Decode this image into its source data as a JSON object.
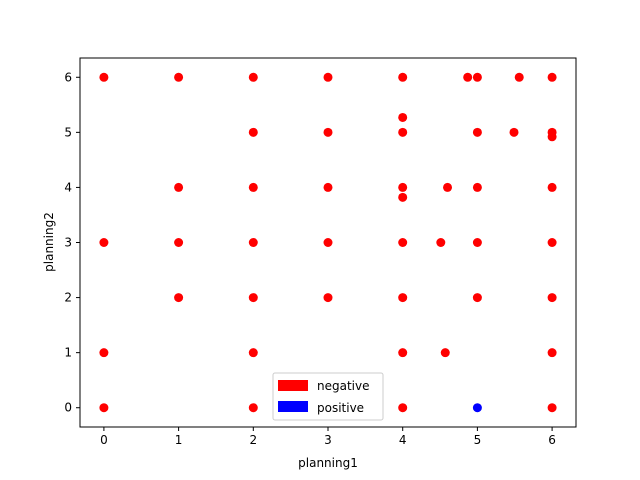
{
  "chart_data": {
    "type": "scatter",
    "title": "",
    "xlabel": "planning1",
    "ylabel": "planning2",
    "xlim": [
      -0.32,
      6.32
    ],
    "ylim": [
      -0.35,
      6.35
    ],
    "xticks": [
      "0",
      "1",
      "2",
      "3",
      "4",
      "5",
      "6"
    ],
    "yticks": [
      "0",
      "1",
      "2",
      "3",
      "4",
      "5",
      "6"
    ],
    "grid": false,
    "legend_position": "bottom-center",
    "series": [
      {
        "name": "negative",
        "color": "#ff0000",
        "points": [
          [
            0,
            6
          ],
          [
            1,
            6
          ],
          [
            2,
            6
          ],
          [
            3,
            6
          ],
          [
            4,
            6
          ],
          [
            4.87,
            6
          ],
          [
            5,
            6
          ],
          [
            5.56,
            6
          ],
          [
            6,
            6
          ],
          [
            4,
            5.27
          ],
          [
            2,
            5
          ],
          [
            3,
            5
          ],
          [
            4,
            5
          ],
          [
            5,
            5
          ],
          [
            5.49,
            5
          ],
          [
            6,
            5
          ],
          [
            6,
            4.92
          ],
          [
            1,
            4
          ],
          [
            2,
            4
          ],
          [
            3,
            4
          ],
          [
            4,
            4
          ],
          [
            4.6,
            4
          ],
          [
            5,
            4
          ],
          [
            6,
            4
          ],
          [
            4,
            3.82
          ],
          [
            0,
            3
          ],
          [
            1,
            3
          ],
          [
            2,
            3
          ],
          [
            3,
            3
          ],
          [
            4,
            3
          ],
          [
            4.51,
            3
          ],
          [
            5,
            3
          ],
          [
            6,
            3
          ],
          [
            1,
            2
          ],
          [
            2,
            2
          ],
          [
            3,
            2
          ],
          [
            4,
            2
          ],
          [
            5,
            2
          ],
          [
            6,
            2
          ],
          [
            0,
            1
          ],
          [
            2,
            1
          ],
          [
            4,
            1
          ],
          [
            4.57,
            1
          ],
          [
            6,
            1
          ],
          [
            0,
            0
          ],
          [
            2,
            0
          ],
          [
            4,
            0
          ],
          [
            6,
            0
          ]
        ]
      },
      {
        "name": "positive",
        "color": "#0000ff",
        "points": [
          [
            5,
            0
          ]
        ]
      }
    ]
  }
}
